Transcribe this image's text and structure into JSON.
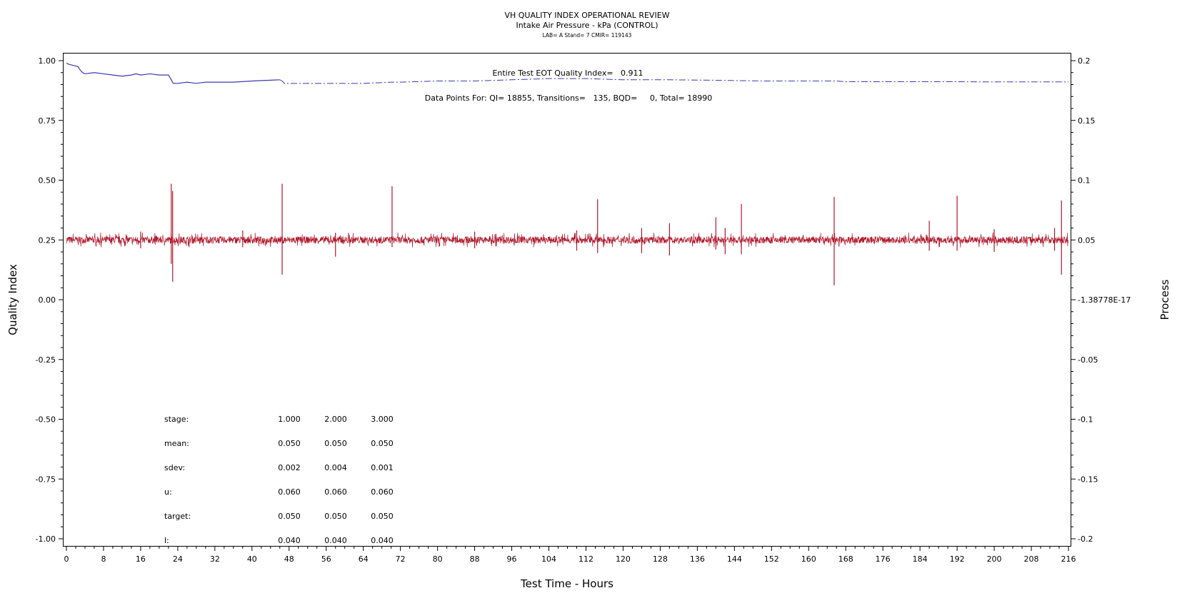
{
  "header": {
    "title": "VH QUALITY INDEX OPERATIONAL REVIEW",
    "subtitle": "Intake Air Pressure - kPa (CONTROL)",
    "meta": "LAB= A Stand= 7 CMIR= 119143"
  },
  "annotations": {
    "qi_label": "Entire Test EOT Quality Index=   0.911",
    "points_label": "Data Points For: QI= 18855, Transitions=   135, BQD=     0, Total= 18990"
  },
  "stats_table": {
    "rows": [
      {
        "label": "stage:",
        "values": [
          "1.000",
          "2.000",
          "3.000"
        ]
      },
      {
        "label": "mean:",
        "values": [
          "0.050",
          "0.050",
          "0.050"
        ]
      },
      {
        "label": "sdev:",
        "values": [
          "0.002",
          "0.004",
          "0.001"
        ]
      },
      {
        "label": "u:",
        "values": [
          "0.060",
          "0.060",
          "0.060"
        ]
      },
      {
        "label": "target:",
        "values": [
          "0.050",
          "0.050",
          "0.050"
        ]
      },
      {
        "label": "l:",
        "values": [
          "0.040",
          "0.040",
          "0.040"
        ]
      }
    ]
  },
  "chart_data": {
    "type": "line",
    "xlabel": "Test Time - Hours",
    "ylabel": "Quality Index",
    "y2label": "Process",
    "xlim": [
      0,
      216
    ],
    "ylim": [
      -1.0,
      1.0
    ],
    "y2lim": [
      -0.2,
      0.2
    ],
    "x_ticks": [
      "0",
      "8",
      "16",
      "24",
      "32",
      "40",
      "48",
      "56",
      "64",
      "72",
      "80",
      "88",
      "96",
      "104",
      "112",
      "120",
      "128",
      "136",
      "144",
      "152",
      "160",
      "168",
      "176",
      "184",
      "192",
      "200",
      "208",
      "216"
    ],
    "y_ticks": [
      "1.00",
      "0.75",
      "0.50",
      "0.25",
      "0.00",
      "-0.25",
      "-0.50",
      "-0.75",
      "-1.00"
    ],
    "y2_ticks": [
      "0.2",
      "0.15",
      "0.1",
      "0.05",
      "-1.38778E-17",
      "-0.05",
      "-0.1",
      "-0.15",
      "-0.2"
    ],
    "grid": false,
    "series": [
      {
        "name": "",
        "axis": "left",
        "color": "#3a3ab0",
        "style": "solid-then-dashdot",
        "x": [
          0,
          0.5,
          1.5,
          2.5,
          3,
          3.5,
          4,
          6,
          8,
          10,
          12,
          14,
          15,
          16,
          18,
          20,
          22,
          22.6,
          23,
          24,
          26,
          28,
          30,
          32,
          36,
          40,
          46,
          46.5,
          47,
          48,
          56,
          64,
          70,
          72,
          80,
          88,
          96,
          104,
          112,
          120,
          130,
          140,
          150,
          160,
          166,
          168,
          180,
          190,
          200,
          210,
          216
        ],
        "y": [
          0.99,
          0.985,
          0.98,
          0.975,
          0.96,
          0.95,
          0.945,
          0.95,
          0.945,
          0.94,
          0.935,
          0.94,
          0.945,
          0.94,
          0.945,
          0.94,
          0.94,
          0.92,
          0.905,
          0.905,
          0.91,
          0.905,
          0.91,
          0.91,
          0.91,
          0.915,
          0.92,
          0.915,
          0.905,
          0.905,
          0.905,
          0.905,
          0.91,
          0.91,
          0.915,
          0.915,
          0.92,
          0.925,
          0.925,
          0.92,
          0.92,
          0.918,
          0.915,
          0.915,
          0.915,
          0.912,
          0.912,
          0.912,
          0.911,
          0.911,
          0.911
        ]
      },
      {
        "name": "",
        "axis": "right",
        "color": "#b0182c",
        "style": "noisy-process",
        "center": 0.05,
        "noise_band": 0.003,
        "spikes": [
          {
            "x": 16,
            "high": 0.057,
            "low": 0.043
          },
          {
            "x": 22.6,
            "high": 0.097,
            "low": 0.03
          },
          {
            "x": 22.9,
            "high": 0.091,
            "low": 0.015
          },
          {
            "x": 38,
            "high": 0.058,
            "low": 0.044
          },
          {
            "x": 46.5,
            "high": 0.097,
            "low": 0.021
          },
          {
            "x": 58,
            "high": 0.056,
            "low": 0.036
          },
          {
            "x": 70.2,
            "high": 0.095,
            "low": 0.044
          },
          {
            "x": 88,
            "high": 0.057,
            "low": 0.043
          },
          {
            "x": 110,
            "high": 0.058,
            "low": 0.041
          },
          {
            "x": 114.5,
            "high": 0.084,
            "low": 0.039
          },
          {
            "x": 124,
            "high": 0.06,
            "low": 0.039
          },
          {
            "x": 130,
            "high": 0.064,
            "low": 0.037
          },
          {
            "x": 140,
            "high": 0.069,
            "low": 0.042
          },
          {
            "x": 142,
            "high": 0.06,
            "low": 0.038
          },
          {
            "x": 145.5,
            "high": 0.08,
            "low": 0.038
          },
          {
            "x": 165.5,
            "high": 0.086,
            "low": 0.012
          },
          {
            "x": 186,
            "high": 0.066,
            "low": 0.041
          },
          {
            "x": 192,
            "high": 0.087,
            "low": 0.041
          },
          {
            "x": 200,
            "high": 0.059,
            "low": 0.04
          },
          {
            "x": 213,
            "high": 0.06,
            "low": 0.041
          },
          {
            "x": 214.5,
            "high": 0.083,
            "low": 0.021
          }
        ]
      }
    ]
  }
}
